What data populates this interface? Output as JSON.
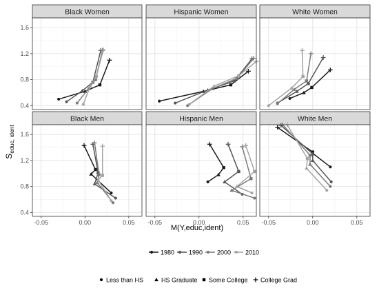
{
  "chart_data": {
    "type": "line",
    "x_axis": {
      "label": "M(Y,educ,ident)",
      "ticks": [
        "-0.05",
        "0.00",
        "0.05"
      ],
      "tick_values": [
        -0.05,
        0,
        0.05
      ],
      "range": [
        -0.06,
        0.065
      ]
    },
    "y_axis": {
      "label_main": "S",
      "label_sub": "educ, ident",
      "ticks": [
        "0.4",
        "0.8",
        "1.2",
        "1.6"
      ],
      "tick_values": [
        0.4,
        0.8,
        1.2,
        1.6
      ],
      "range": [
        0.34,
        1.75
      ]
    },
    "grid": true,
    "legend_years": {
      "position": "bottom",
      "entries": [
        {
          "label": "1980",
          "color": "#1a1a1a"
        },
        {
          "label": "1990",
          "color": "#555555"
        },
        {
          "label": "2000",
          "color": "#7a7a7a"
        },
        {
          "label": "2010",
          "color": "#a3a3a3"
        }
      ]
    },
    "legend_education": {
      "position": "bottom",
      "entries": [
        {
          "label": "Less than HS",
          "shape": "circle"
        },
        {
          "label": "HS Graduate",
          "shape": "triangle"
        },
        {
          "label": "Some College",
          "shape": "square"
        },
        {
          "label": "College Grad",
          "shape": "plus"
        }
      ]
    },
    "panels": [
      {
        "title": "Black Women",
        "series": [
          {
            "year": "1980",
            "points": [
              [
                -0.03,
                0.5
              ],
              [
                0.0,
                0.62
              ],
              [
                0.017,
                0.72
              ],
              [
                0.028,
                1.1
              ]
            ]
          },
          {
            "year": "1990",
            "points": [
              [
                -0.021,
                0.46
              ],
              [
                -0.003,
                0.63
              ],
              [
                0.009,
                0.76
              ],
              [
                0.018,
                1.25
              ]
            ]
          },
          {
            "year": "2000",
            "points": [
              [
                -0.009,
                0.44
              ],
              [
                0.004,
                0.66
              ],
              [
                0.012,
                0.8
              ],
              [
                0.02,
                1.25
              ]
            ]
          },
          {
            "year": "2010",
            "points": [
              [
                -0.002,
                0.42
              ],
              [
                0.006,
                0.7
              ],
              [
                0.013,
                0.85
              ],
              [
                0.021,
                1.26
              ]
            ]
          }
        ]
      },
      {
        "title": "Hispanic Women",
        "series": [
          {
            "year": "1980",
            "points": [
              [
                -0.045,
                0.47
              ],
              [
                0.005,
                0.62
              ],
              [
                0.036,
                0.72
              ],
              [
                0.056,
                0.93
              ]
            ]
          },
          {
            "year": "1990",
            "points": [
              [
                -0.027,
                0.44
              ],
              [
                0.01,
                0.64
              ],
              [
                0.04,
                0.78
              ],
              [
                0.06,
                1.12
              ]
            ]
          },
          {
            "year": "2000",
            "points": [
              [
                -0.013,
                0.4
              ],
              [
                0.015,
                0.66
              ],
              [
                0.043,
                0.82
              ],
              [
                0.062,
                1.13
              ]
            ]
          },
          {
            "year": "2010",
            "points": [
              [
                -0.011,
                0.42
              ],
              [
                0.017,
                0.7
              ],
              [
                0.045,
                0.86
              ],
              [
                0.065,
                1.08
              ]
            ]
          }
        ]
      },
      {
        "title": "White Women",
        "series": [
          {
            "year": "1980",
            "points": [
              [
                -0.026,
                0.51
              ],
              [
                -0.01,
                0.6
              ],
              [
                -0.001,
                0.68
              ],
              [
                0.02,
                0.95
              ]
            ]
          },
          {
            "year": "1990",
            "points": [
              [
                -0.04,
                0.44
              ],
              [
                -0.018,
                0.62
              ],
              [
                -0.005,
                0.74
              ],
              [
                0.012,
                1.14
              ]
            ]
          },
          {
            "year": "2000",
            "points": [
              [
                -0.04,
                0.43
              ],
              [
                -0.021,
                0.65
              ],
              [
                -0.007,
                0.78
              ],
              [
                -0.002,
                1.2
              ]
            ]
          },
          {
            "year": "2010",
            "points": [
              [
                -0.05,
                0.4
              ],
              [
                -0.024,
                0.67
              ],
              [
                -0.011,
                0.85
              ],
              [
                -0.012,
                1.25
              ]
            ]
          }
        ]
      },
      {
        "title": "Black Men",
        "series": [
          {
            "year": "1980",
            "points": [
              [
                0.03,
                0.7
              ],
              [
                0.007,
                0.99
              ],
              [
                0.012,
                1.06
              ],
              [
                -0.001,
                1.43
              ]
            ]
          },
          {
            "year": "1990",
            "points": [
              [
                0.035,
                0.62
              ],
              [
                0.011,
                0.84
              ],
              [
                0.015,
                1.01
              ],
              [
                0.009,
                1.45
              ]
            ]
          },
          {
            "year": "2000",
            "points": [
              [
                0.032,
                0.55
              ],
              [
                0.014,
                0.86
              ],
              [
                0.016,
                0.98
              ],
              [
                0.011,
                1.47
              ]
            ]
          },
          {
            "year": "2010",
            "points": [
              [
                0.03,
                0.58
              ],
              [
                0.015,
                0.9
              ],
              [
                0.02,
                0.97
              ],
              [
                0.02,
                1.42
              ]
            ]
          }
        ]
      },
      {
        "title": "Hispanic Men",
        "series": [
          {
            "year": "1980",
            "points": [
              [
                0.01,
                0.87
              ],
              [
                0.022,
                0.98
              ],
              [
                0.028,
                1.09
              ],
              [
                0.012,
                1.45
              ]
            ]
          },
          {
            "year": "1990",
            "points": [
              [
                0.049,
                0.68
              ],
              [
                0.029,
                0.87
              ],
              [
                0.045,
                1.03
              ],
              [
                0.033,
                1.45
              ]
            ]
          },
          {
            "year": "2000",
            "points": [
              [
                0.063,
                0.62
              ],
              [
                0.037,
                0.74
              ],
              [
                0.059,
                0.92
              ],
              [
                0.049,
                1.41
              ]
            ]
          },
          {
            "year": "2010",
            "points": [
              [
                0.06,
                0.7
              ],
              [
                0.043,
                0.8
              ],
              [
                0.063,
                1.03
              ],
              [
                0.053,
                1.43
              ]
            ]
          }
        ]
      },
      {
        "title": "White Men",
        "series": [
          {
            "year": "1980",
            "points": [
              [
                0.02,
                1.1
              ],
              [
                0.0,
                1.31
              ],
              [
                0.0,
                1.33
              ],
              [
                -0.04,
                1.71
              ]
            ]
          },
          {
            "year": "1990",
            "points": [
              [
                0.021,
                0.87
              ],
              [
                0.0,
                1.2
              ],
              [
                0.0,
                1.3
              ],
              [
                -0.036,
                1.74
              ]
            ]
          },
          {
            "year": "2000",
            "points": [
              [
                0.02,
                0.8
              ],
              [
                -0.003,
                1.14
              ],
              [
                -0.003,
                1.28
              ],
              [
                -0.034,
                1.75
              ]
            ]
          },
          {
            "year": "2010",
            "points": [
              [
                0.016,
                0.74
              ],
              [
                -0.007,
                1.08
              ],
              [
                -0.006,
                1.23
              ],
              [
                -0.029,
                1.75
              ]
            ]
          }
        ]
      }
    ]
  }
}
